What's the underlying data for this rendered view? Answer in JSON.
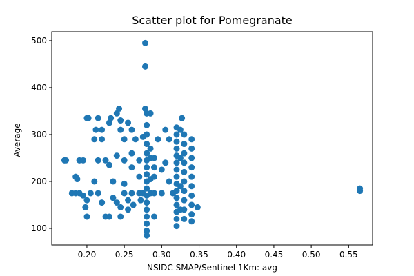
{
  "chart_data": {
    "type": "scatter",
    "title": "Scatter plot for Pomegranate",
    "x_label": "NSIDC SMAP/Sentinel 1Km: avg",
    "y_label": "Average",
    "color": "#1f77b4",
    "grid": false,
    "xlim": [
      0.153,
      0.582
    ],
    "ylim": [
      64.7,
      519
    ],
    "xticks": [
      {
        "value": 0.2,
        "label": "0.20"
      },
      {
        "value": 0.25,
        "label": "0.25"
      },
      {
        "value": 0.3,
        "label": "0.30"
      },
      {
        "value": 0.35,
        "label": "0.35"
      },
      {
        "value": 0.4,
        "label": "0.40"
      },
      {
        "value": 0.45,
        "label": "0.45"
      },
      {
        "value": 0.5,
        "label": "0.50"
      },
      {
        "value": 0.55,
        "label": "0.55"
      }
    ],
    "yticks": [
      100,
      200,
      300,
      400,
      500
    ],
    "x": [
      0.17,
      0.172,
      0.18,
      0.185,
      0.19,
      0.195,
      0.185,
      0.187,
      0.19,
      0.195,
      0.2,
      0.198,
      0.2,
      0.205,
      0.2,
      0.202,
      0.21,
      0.212,
      0.215,
      0.215,
      0.21,
      0.215,
      0.22,
      0.22,
      0.22,
      0.225,
      0.23,
      0.225,
      0.23,
      0.23,
      0.232,
      0.235,
      0.235,
      0.24,
      0.24,
      0.243,
      0.245,
      0.245,
      0.24,
      0.245,
      0.245,
      0.25,
      0.25,
      0.25,
      0.25,
      0.255,
      0.255,
      0.255,
      0.26,
      0.26,
      0.26,
      0.26,
      0.262,
      0.265,
      0.27,
      0.27,
      0.27,
      0.272,
      0.275,
      0.275,
      0.278,
      0.278,
      0.278,
      0.28,
      0.28,
      0.28,
      0.28,
      0.28,
      0.28,
      0.28,
      0.28,
      0.28,
      0.28,
      0.28,
      0.28,
      0.28,
      0.28,
      0.28,
      0.28,
      0.28,
      0.285,
      0.285,
      0.285,
      0.285,
      0.285,
      0.29,
      0.29,
      0.29,
      0.29,
      0.29,
      0.295,
      0.3,
      0.3,
      0.305,
      0.305,
      0.31,
      0.31,
      0.315,
      0.32,
      0.32,
      0.32,
      0.32,
      0.32,
      0.32,
      0.32,
      0.32,
      0.32,
      0.32,
      0.32,
      0.32,
      0.32,
      0.32,
      0.32,
      0.325,
      0.325,
      0.325,
      0.325,
      0.327,
      0.33,
      0.33,
      0.33,
      0.33,
      0.33,
      0.33,
      0.33,
      0.33,
      0.33,
      0.33,
      0.34,
      0.34,
      0.34,
      0.34,
      0.34,
      0.34,
      0.34,
      0.34,
      0.34,
      0.34,
      0.348,
      0.565,
      0.565
    ],
    "values": [
      245,
      245,
      175,
      175,
      175,
      170,
      210,
      205,
      245,
      245,
      160,
      145,
      125,
      175,
      335,
      335,
      290,
      310,
      335,
      245,
      200,
      175,
      155,
      310,
      290,
      125,
      125,
      245,
      235,
      325,
      335,
      165,
      200,
      255,
      345,
      355,
      330,
      310,
      155,
      145,
      125,
      290,
      245,
      195,
      175,
      160,
      140,
      325,
      310,
      260,
      230,
      175,
      150,
      290,
      245,
      210,
      175,
      160,
      295,
      175,
      495,
      445,
      355,
      345,
      320,
      300,
      280,
      260,
      245,
      230,
      215,
      200,
      185,
      170,
      155,
      140,
      125,
      110,
      95,
      85,
      345,
      270,
      250,
      205,
      175,
      250,
      230,
      210,
      175,
      125,
      290,
      225,
      175,
      240,
      310,
      290,
      200,
      175,
      315,
      300,
      285,
      270,
      255,
      240,
      225,
      210,
      195,
      180,
      165,
      150,
      135,
      120,
      105,
      310,
      250,
      190,
      140,
      335,
      300,
      280,
      260,
      240,
      220,
      200,
      180,
      160,
      140,
      120,
      290,
      270,
      250,
      230,
      210,
      190,
      170,
      150,
      130,
      115,
      145,
      185,
      180
    ]
  }
}
